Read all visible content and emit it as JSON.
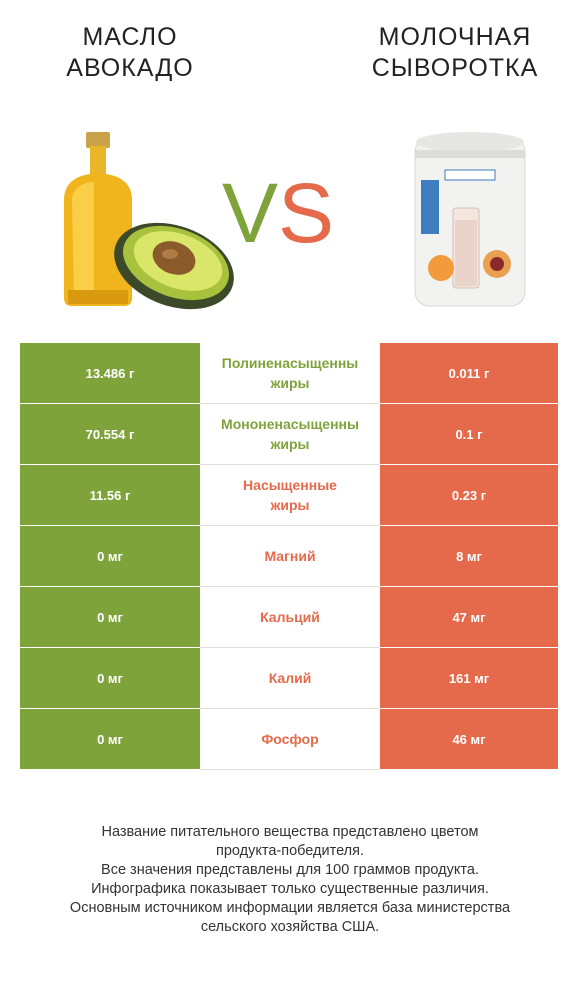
{
  "left_product": {
    "title_line1": "Масло",
    "title_line2": "авокадо"
  },
  "right_product": {
    "title_line1": "Молочная",
    "title_line2": "сыворотка"
  },
  "vs": {
    "v": "V",
    "s": "S"
  },
  "colors": {
    "left": "#7fa33b",
    "right": "#e46a4b"
  },
  "rows": [
    {
      "name_line1": "Полиненасыщенны",
      "name_line2": "жиры",
      "left": "13.486 г",
      "right": "0.011 г",
      "winner": "left"
    },
    {
      "name_line1": "Мононенасыщенны",
      "name_line2": "жиры",
      "left": "70.554 г",
      "right": "0.1 г",
      "winner": "left"
    },
    {
      "name_line1": "Насыщенные",
      "name_line2": "жиры",
      "left": "11.56 г",
      "right": "0.23 г",
      "winner": "right"
    },
    {
      "name_line1": "Магний",
      "name_line2": "",
      "left": "0 мг",
      "right": "8 мг",
      "winner": "right"
    },
    {
      "name_line1": "Кальций",
      "name_line2": "",
      "left": "0 мг",
      "right": "47 мг",
      "winner": "right"
    },
    {
      "name_line1": "Калий",
      "name_line2": "",
      "left": "0 мг",
      "right": "161 мг",
      "winner": "right"
    },
    {
      "name_line1": "Фосфор",
      "name_line2": "",
      "left": "0 мг",
      "right": "46 мг",
      "winner": "right"
    }
  ],
  "footer": {
    "line1": "Название питательного вещества представлено цветом",
    "line2": "продукта-победителя.",
    "line3": "Все значения представлены для 100 граммов продукта.",
    "line4": "Инфографика показывает только существенные различия.",
    "line5": "Основным источником информации является база министерства",
    "line6": "сельского хозяйства США."
  }
}
